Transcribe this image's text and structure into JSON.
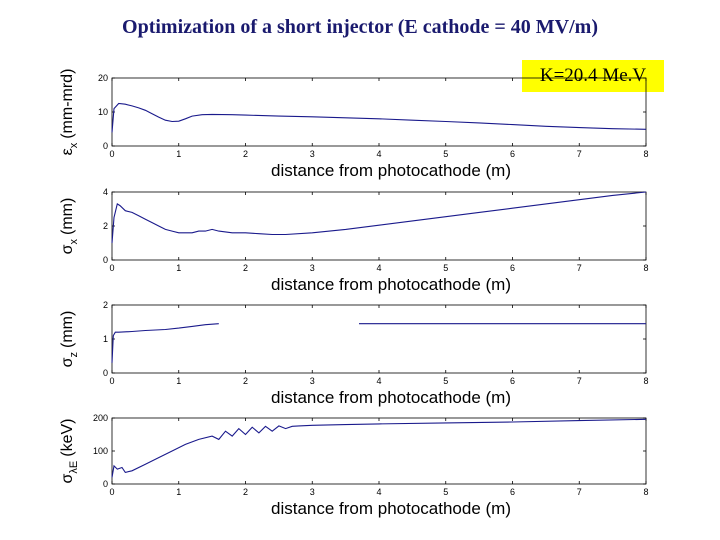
{
  "title": "Optimization of a short injector (E cathode = 40 MV/m)",
  "energy_label": "K=20.4 Me.V",
  "colors": {
    "line": "#1a1a8c",
    "title": "#1a1a6e",
    "highlight": "#ffff00"
  },
  "chart_data": [
    {
      "type": "line",
      "xlabel": "distance from photocathode (m)",
      "ylabel": {
        "symbol": "ε",
        "sub": "x",
        "unit": "(mm-mrd)"
      },
      "xlim": [
        0,
        8
      ],
      "ylim": [
        0,
        20
      ],
      "xticks": [
        0,
        1,
        2,
        3,
        4,
        5,
        6,
        7,
        8
      ],
      "yticks": [
        0,
        10,
        20
      ],
      "series": [
        {
          "x": [
            0,
            0.03,
            0.1,
            0.2,
            0.3,
            0.4,
            0.5,
            0.6,
            0.7,
            0.8,
            0.9,
            1.0,
            1.1,
            1.2,
            1.35,
            1.5,
            1.8,
            2.0,
            2.5,
            3.0,
            3.5,
            4.0,
            4.5,
            5.0,
            5.5,
            6.0,
            6.5,
            7.0,
            7.5,
            8.0
          ],
          "y": [
            4,
            11,
            12.5,
            12.3,
            11.8,
            11.2,
            10.5,
            9.5,
            8.5,
            7.6,
            7.2,
            7.3,
            8.0,
            8.8,
            9.2,
            9.3,
            9.2,
            9.1,
            8.8,
            8.6,
            8.3,
            8.0,
            7.6,
            7.2,
            6.8,
            6.3,
            5.8,
            5.4,
            5.1,
            4.9
          ]
        }
      ]
    },
    {
      "type": "line",
      "xlabel": "distance from photocathode (m)",
      "ylabel": {
        "symbol": "σ",
        "sub": "x",
        "unit": "(mm)"
      },
      "xlim": [
        0,
        8
      ],
      "ylim": [
        0,
        4
      ],
      "xticks": [
        0,
        1,
        2,
        3,
        4,
        5,
        6,
        7,
        8
      ],
      "yticks": [
        0,
        2,
        4
      ],
      "series": [
        {
          "x": [
            0,
            0.03,
            0.08,
            0.12,
            0.2,
            0.3,
            0.4,
            0.5,
            0.6,
            0.7,
            0.8,
            0.9,
            1.0,
            1.1,
            1.2,
            1.3,
            1.4,
            1.5,
            1.6,
            1.8,
            2.0,
            2.2,
            2.4,
            2.6,
            3.0,
            3.5,
            4.0,
            4.5,
            5.0,
            5.5,
            6.0,
            6.5,
            7.0,
            7.5,
            8.0
          ],
          "y": [
            1.0,
            2.5,
            3.3,
            3.2,
            2.9,
            2.8,
            2.6,
            2.4,
            2.2,
            2.0,
            1.8,
            1.7,
            1.6,
            1.6,
            1.6,
            1.7,
            1.7,
            1.8,
            1.7,
            1.6,
            1.6,
            1.55,
            1.5,
            1.5,
            1.6,
            1.8,
            2.05,
            2.3,
            2.55,
            2.8,
            3.05,
            3.3,
            3.55,
            3.8,
            4.0
          ]
        }
      ]
    },
    {
      "type": "line",
      "xlabel": "distance from photocathode (m)",
      "ylabel": {
        "symbol": "σ",
        "sub": "z",
        "unit": "(mm)"
      },
      "xlim": [
        0,
        8
      ],
      "ylim": [
        0,
        2
      ],
      "xticks": [
        0,
        1,
        2,
        3,
        4,
        5,
        6,
        7,
        8
      ],
      "yticks": [
        0,
        1,
        2
      ],
      "series": [
        {
          "x": [
            0,
            0.02,
            0.05,
            0.1,
            0.3,
            0.5,
            0.8,
            1.0,
            1.2,
            1.4,
            1.6
          ],
          "y": [
            0.3,
            1.1,
            1.2,
            1.2,
            1.22,
            1.25,
            1.28,
            1.32,
            1.37,
            1.42,
            1.45
          ]
        },
        {
          "x": [
            3.7,
            4.5,
            5.5,
            6.5,
            7.5,
            8.0
          ],
          "y": [
            1.45,
            1.45,
            1.45,
            1.45,
            1.45,
            1.45
          ]
        }
      ]
    },
    {
      "type": "line",
      "xlabel": "distance from photocathode (m)",
      "ylabel": {
        "symbol": "σ",
        "sub": "λE",
        "unit": "(keV)"
      },
      "xlim": [
        0,
        8
      ],
      "ylim": [
        0,
        200
      ],
      "xticks": [
        0,
        1,
        2,
        3,
        4,
        5,
        6,
        7,
        8
      ],
      "yticks": [
        0,
        100,
        200
      ],
      "series": [
        {
          "x": [
            0,
            0.03,
            0.08,
            0.15,
            0.2,
            0.3,
            0.5,
            0.7,
            0.9,
            1.1,
            1.3,
            1.5,
            1.6,
            1.7,
            1.8,
            1.9,
            2.0,
            2.1,
            2.2,
            2.3,
            2.4,
            2.5,
            2.6,
            2.7,
            2.8,
            3.0,
            3.5,
            4.0,
            5.0,
            6.0,
            7.0,
            8.0
          ],
          "y": [
            20,
            55,
            45,
            50,
            35,
            40,
            60,
            80,
            100,
            120,
            135,
            145,
            135,
            160,
            145,
            168,
            150,
            172,
            155,
            175,
            160,
            176,
            168,
            175,
            176,
            178,
            180,
            182,
            185,
            188,
            192,
            196
          ]
        }
      ]
    }
  ]
}
